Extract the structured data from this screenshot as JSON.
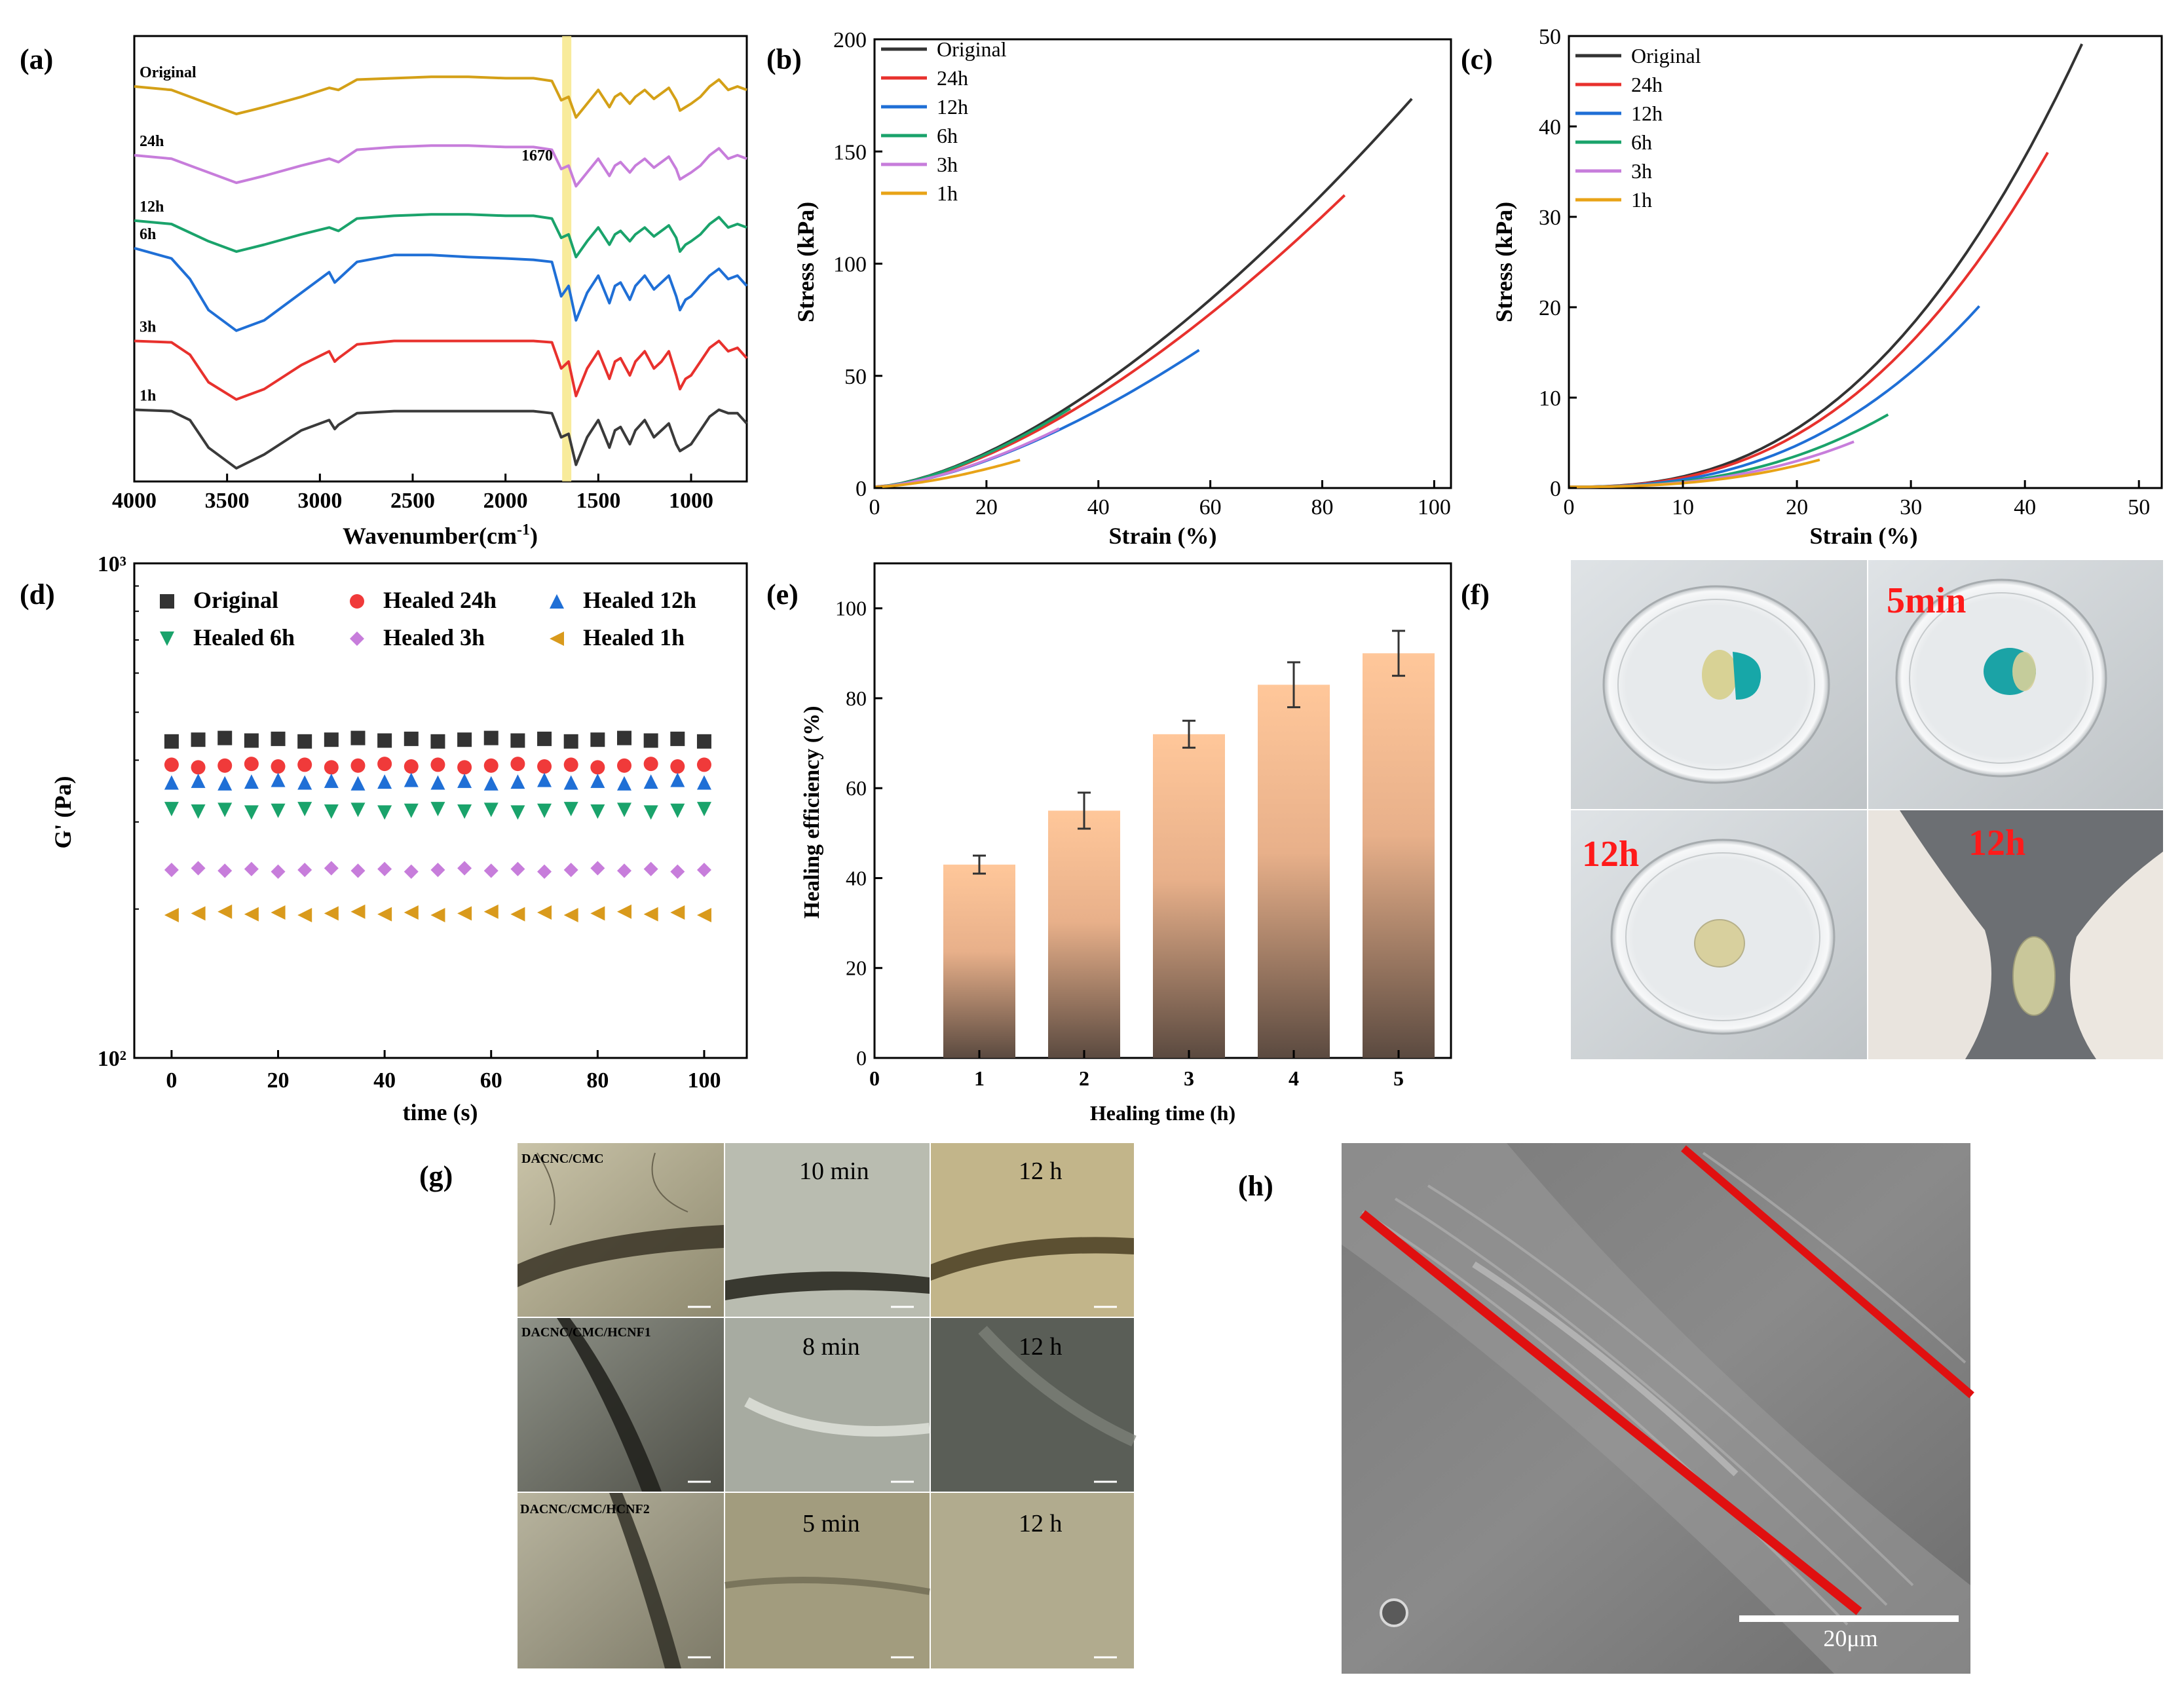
{
  "figure": {
    "panel_labels": [
      "(a)",
      "(b)",
      "(c)",
      "(d)",
      "(e)",
      "(f)",
      "(g)",
      "(h)"
    ]
  },
  "chart_data": [
    {
      "panel": "(a)",
      "type": "line",
      "xlabel": "Wavenumber(cm-1)",
      "ylabel": "",
      "xlim": [
        4000,
        700
      ],
      "xticks": [
        4000,
        3500,
        3000,
        2500,
        2000,
        1500,
        1000
      ],
      "y_ticks_shown": false,
      "highlight_band": 1670,
      "annotation": "1670",
      "series": [
        {
          "name": "Original",
          "color": "#d4a017",
          "offset": 5,
          "x": [
            4000,
            3800,
            3600,
            3450,
            3300,
            3100,
            2950,
            2900,
            2800,
            2600,
            2400,
            2200,
            2000,
            1850,
            1750,
            1700,
            1660,
            1620,
            1560,
            1500,
            1440,
            1410,
            1380,
            1330,
            1300,
            1250,
            1200,
            1160,
            1120,
            1080,
            1060,
            1030,
            1000,
            950,
            900,
            850,
            800,
            750,
            700
          ],
          "y": [
            0.6,
            0.55,
            0.35,
            0.2,
            0.3,
            0.45,
            0.58,
            0.55,
            0.7,
            0.72,
            0.74,
            0.74,
            0.72,
            0.72,
            0.68,
            0.4,
            0.45,
            0.15,
            0.35,
            0.55,
            0.3,
            0.45,
            0.5,
            0.35,
            0.45,
            0.55,
            0.42,
            0.5,
            0.58,
            0.4,
            0.25,
            0.3,
            0.35,
            0.45,
            0.6,
            0.7,
            0.55,
            0.6,
            0.55
          ]
        },
        {
          "name": "24h",
          "color": "#c77ddb",
          "offset": 4,
          "x": [
            4000,
            3800,
            3600,
            3450,
            3300,
            3100,
            2950,
            2900,
            2800,
            2600,
            2400,
            2200,
            2000,
            1850,
            1750,
            1700,
            1660,
            1620,
            1560,
            1500,
            1440,
            1410,
            1380,
            1330,
            1300,
            1250,
            1200,
            1160,
            1120,
            1080,
            1060,
            1030,
            1000,
            950,
            900,
            850,
            800,
            750,
            700
          ],
          "y": [
            0.6,
            0.55,
            0.35,
            0.2,
            0.3,
            0.45,
            0.55,
            0.5,
            0.68,
            0.72,
            0.74,
            0.74,
            0.72,
            0.72,
            0.68,
            0.4,
            0.45,
            0.15,
            0.35,
            0.55,
            0.3,
            0.45,
            0.5,
            0.35,
            0.45,
            0.55,
            0.42,
            0.5,
            0.58,
            0.4,
            0.25,
            0.3,
            0.35,
            0.45,
            0.6,
            0.7,
            0.55,
            0.6,
            0.55
          ]
        },
        {
          "name": "12h",
          "color": "#1aa36b",
          "offset": 3,
          "x": [
            4000,
            3800,
            3600,
            3450,
            3300,
            3100,
            2950,
            2900,
            2800,
            2600,
            2400,
            2200,
            2000,
            1850,
            1750,
            1700,
            1660,
            1620,
            1560,
            1500,
            1440,
            1410,
            1380,
            1330,
            1300,
            1250,
            1200,
            1160,
            1120,
            1080,
            1060,
            1030,
            1000,
            950,
            900,
            850,
            800,
            750,
            700
          ],
          "y": [
            0.65,
            0.6,
            0.35,
            0.2,
            0.3,
            0.45,
            0.55,
            0.5,
            0.68,
            0.72,
            0.74,
            0.74,
            0.72,
            0.72,
            0.68,
            0.4,
            0.45,
            0.12,
            0.35,
            0.55,
            0.3,
            0.45,
            0.5,
            0.35,
            0.45,
            0.55,
            0.42,
            0.5,
            0.58,
            0.4,
            0.2,
            0.3,
            0.35,
            0.45,
            0.6,
            0.7,
            0.55,
            0.6,
            0.55
          ]
        },
        {
          "name": "6h",
          "color": "#1f6fd6",
          "offset": 2,
          "x": [
            4000,
            3800,
            3700,
            3600,
            3450,
            3300,
            3100,
            2950,
            2920,
            2900,
            2800,
            2600,
            2400,
            2200,
            2000,
            1850,
            1750,
            1700,
            1660,
            1620,
            1560,
            1500,
            1440,
            1410,
            1380,
            1330,
            1300,
            1250,
            1200,
            1160,
            1120,
            1080,
            1060,
            1030,
            1000,
            950,
            900,
            850,
            800,
            750,
            700
          ],
          "y": [
            1.25,
            1.1,
            0.8,
            0.35,
            0.05,
            0.2,
            0.6,
            0.9,
            0.75,
            0.8,
            1.05,
            1.15,
            1.15,
            1.12,
            1.1,
            1.08,
            1.05,
            0.55,
            0.7,
            0.2,
            0.6,
            0.85,
            0.45,
            0.7,
            0.75,
            0.5,
            0.7,
            0.85,
            0.65,
            0.75,
            0.85,
            0.55,
            0.35,
            0.5,
            0.55,
            0.7,
            0.85,
            0.95,
            0.8,
            0.85,
            0.7
          ]
        },
        {
          "name": "3h",
          "color": "#e8312d",
          "offset": 1,
          "x": [
            4000,
            3800,
            3700,
            3600,
            3450,
            3300,
            3100,
            2950,
            2920,
            2900,
            2800,
            2600,
            2400,
            2200,
            2000,
            1850,
            1750,
            1700,
            1660,
            1620,
            1560,
            1500,
            1440,
            1410,
            1380,
            1330,
            1300,
            1250,
            1200,
            1160,
            1120,
            1080,
            1060,
            1030,
            1000,
            950,
            900,
            850,
            800,
            750,
            700
          ],
          "y": [
            0.9,
            0.88,
            0.7,
            0.3,
            0.05,
            0.2,
            0.55,
            0.75,
            0.6,
            0.65,
            0.85,
            0.9,
            0.9,
            0.9,
            0.9,
            0.9,
            0.88,
            0.5,
            0.6,
            0.1,
            0.5,
            0.75,
            0.35,
            0.6,
            0.65,
            0.4,
            0.6,
            0.75,
            0.5,
            0.6,
            0.75,
            0.4,
            0.2,
            0.35,
            0.4,
            0.6,
            0.8,
            0.9,
            0.75,
            0.8,
            0.65
          ]
        },
        {
          "name": "1h",
          "color": "#3a3a3a",
          "offset": 0,
          "x": [
            4000,
            3800,
            3700,
            3600,
            3450,
            3300,
            3100,
            2950,
            2920,
            2900,
            2800,
            2600,
            2400,
            2200,
            2000,
            1850,
            1750,
            1700,
            1660,
            1620,
            1560,
            1500,
            1440,
            1410,
            1380,
            1330,
            1300,
            1250,
            1200,
            1160,
            1120,
            1080,
            1060,
            1030,
            1000,
            950,
            900,
            850,
            800,
            750,
            700
          ],
          "y": [
            0.9,
            0.88,
            0.75,
            0.35,
            0.05,
            0.25,
            0.6,
            0.75,
            0.62,
            0.68,
            0.85,
            0.88,
            0.88,
            0.88,
            0.88,
            0.88,
            0.85,
            0.5,
            0.55,
            0.1,
            0.5,
            0.75,
            0.35,
            0.6,
            0.65,
            0.4,
            0.6,
            0.75,
            0.5,
            0.6,
            0.7,
            0.4,
            0.3,
            0.35,
            0.4,
            0.6,
            0.8,
            0.9,
            0.85,
            0.85,
            0.7
          ]
        }
      ]
    },
    {
      "panel": "(b)",
      "type": "line",
      "xlabel": "Strain (%)",
      "ylabel": "Stress (kPa)",
      "xlim": [
        0,
        103
      ],
      "ylim": [
        0,
        200
      ],
      "xticks": [
        0,
        20,
        40,
        60,
        80,
        100
      ],
      "yticks": [
        0,
        50,
        100,
        150,
        200
      ],
      "legend_position": "top-left",
      "series": [
        {
          "name": "Original",
          "color": "#333333",
          "end_strain": 96,
          "end_stress": 173
        },
        {
          "name": "24h",
          "color": "#e8312d",
          "end_strain": 84,
          "end_stress": 130
        },
        {
          "name": "12h",
          "color": "#1f6fd6",
          "end_strain": 58,
          "end_stress": 61
        },
        {
          "name": "6h",
          "color": "#1aa36b",
          "end_strain": 35,
          "end_stress": 35
        },
        {
          "name": "3h",
          "color": "#c77ddb",
          "end_strain": 33,
          "end_stress": 26
        },
        {
          "name": "1h",
          "color": "#e8a317",
          "end_strain": 26,
          "end_stress": 12
        }
      ]
    },
    {
      "panel": "(c)",
      "type": "line",
      "xlabel": "Strain (%)",
      "ylabel": "Stress (kPa)",
      "xlim": [
        0,
        52
      ],
      "ylim": [
        0,
        50
      ],
      "xticks": [
        0,
        10,
        20,
        30,
        40,
        50
      ],
      "yticks": [
        0,
        10,
        20,
        30,
        40,
        50
      ],
      "legend_position": "top-left",
      "series": [
        {
          "name": "Original",
          "color": "#333333",
          "end_strain": 45,
          "end_stress": 49
        },
        {
          "name": "24h",
          "color": "#e8312d",
          "end_strain": 42,
          "end_stress": 37
        },
        {
          "name": "12h",
          "color": "#1f6fd6",
          "end_strain": 36,
          "end_stress": 20
        },
        {
          "name": "6h",
          "color": "#1aa36b",
          "end_strain": 28,
          "end_stress": 8
        },
        {
          "name": "3h",
          "color": "#c77ddb",
          "end_strain": 25,
          "end_stress": 5
        },
        {
          "name": "1h",
          "color": "#e8a317",
          "end_strain": 22,
          "end_stress": 3
        }
      ]
    },
    {
      "panel": "(d)",
      "type": "scatter",
      "xlabel": "time (s)",
      "ylabel": "G' (Pa)",
      "y_scale": "log",
      "xlim": [
        -7,
        108
      ],
      "ylim": [
        100,
        1000
      ],
      "xticks": [
        0,
        20,
        40,
        60,
        80,
        100
      ],
      "yticks_labels": [
        "10²",
        "10³"
      ],
      "legend_position": "top",
      "x": [
        0,
        5,
        10,
        15,
        20,
        25,
        30,
        35,
        40,
        45,
        50,
        55,
        60,
        65,
        70,
        75,
        80,
        85,
        90,
        95,
        100
      ],
      "series": [
        {
          "name": "Original",
          "marker": "square",
          "color": "#333333",
          "value": 440
        },
        {
          "name": "Healed 24h",
          "marker": "circle",
          "color": "#f03a3a",
          "value": 390
        },
        {
          "name": "Healed 12h",
          "marker": "triangle-up",
          "color": "#1f6fd6",
          "value": 362
        },
        {
          "name": "Healed 6h",
          "marker": "triangle-down",
          "color": "#1aa36b",
          "value": 316
        },
        {
          "name": "Healed 3h",
          "marker": "diamond",
          "color": "#c77ddb",
          "value": 240
        },
        {
          "name": "Healed 1h",
          "marker": "triangle-left",
          "color": "#d99a1c",
          "value": 196
        }
      ]
    },
    {
      "panel": "(e)",
      "type": "bar",
      "xlabel": "Healing time (h)",
      "ylabel": "Healing efficiency (%)",
      "xlim": [
        0,
        5.5
      ],
      "ylim": [
        0,
        110
      ],
      "xticks": [
        0,
        1,
        2,
        3,
        4,
        5
      ],
      "yticks": [
        0,
        20,
        40,
        60,
        80,
        100
      ],
      "categories": [
        1,
        2,
        3,
        4,
        5
      ],
      "values": [
        43,
        55,
        72,
        83,
        90
      ],
      "errors": [
        2,
        4,
        3,
        5,
        5
      ],
      "bar_gradient": [
        "#ffc79a",
        "#5b4a40"
      ]
    }
  ],
  "panel_f": {
    "labels": [
      "5min",
      "12h",
      "12h"
    ],
    "label_color": "#ff1a1a"
  },
  "panel_g": {
    "row_labels": [
      "DACNC/CMC",
      "DACNC/CMC/HCNF1",
      "DACNC/CMC/HCNF2"
    ],
    "times": [
      [
        "10 min",
        "12 h"
      ],
      [
        "8 min",
        "12 h"
      ],
      [
        "5 min",
        "12 h"
      ]
    ]
  },
  "panel_h": {
    "scale_bar": "20μm",
    "line_color": "#e01010"
  }
}
